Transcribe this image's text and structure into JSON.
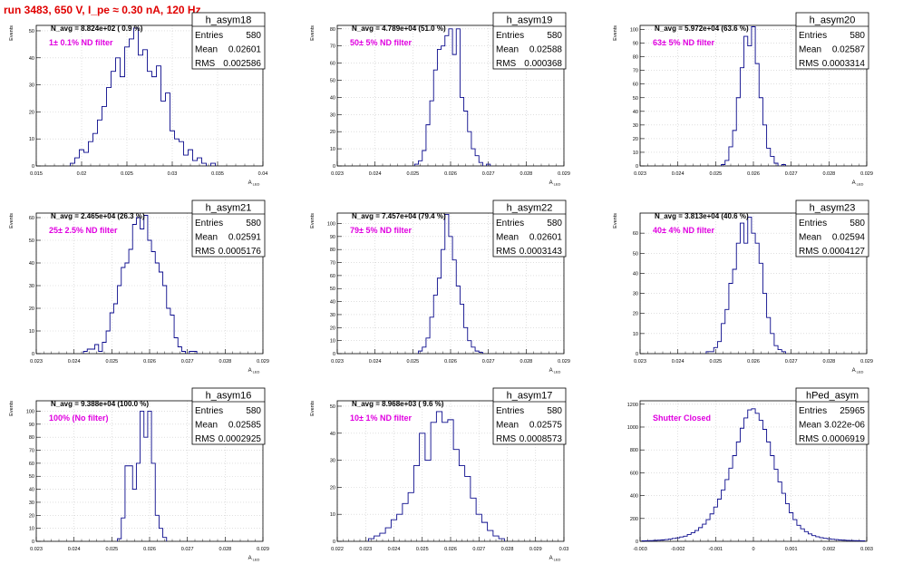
{
  "run_title": "run 3483,   650 V, I_pe ≈ 0.30 nA, 120 Hz",
  "colors": {
    "title": "#e00000",
    "line": "#0a0a8c",
    "filter_label": "#e000e0",
    "grid": "#cccccc"
  },
  "chart_data": [
    {
      "type": "bar",
      "name": "h_asym18",
      "title": "N_avg = 8.824e+02 ( 0.9 %)",
      "label": "1± 0.1% ND filter",
      "ylabel": "Events",
      "xlabel": "A_LED",
      "xlim": [
        0.015,
        0.04
      ],
      "ylim": [
        0,
        52
      ],
      "xticks": [
        0.015,
        0.02,
        0.025,
        0.03,
        0.035,
        0.04
      ],
      "xtick_labels": [
        "0.015",
        "0.02",
        "0.025",
        "0.03",
        "0.035",
        "0.04"
      ],
      "yticks": [
        0,
        10,
        20,
        30,
        40,
        50
      ],
      "stats": {
        "Entries": "580",
        "Mean": "0.02601",
        "RMS": "0.002586"
      },
      "bin_width": 0.0005,
      "values": [
        [
          0.019,
          1
        ],
        [
          0.0195,
          3
        ],
        [
          0.02,
          6
        ],
        [
          0.0205,
          5
        ],
        [
          0.021,
          9
        ],
        [
          0.0215,
          12
        ],
        [
          0.022,
          17
        ],
        [
          0.0225,
          22
        ],
        [
          0.023,
          29
        ],
        [
          0.0235,
          35
        ],
        [
          0.024,
          40
        ],
        [
          0.0245,
          33
        ],
        [
          0.025,
          44
        ],
        [
          0.0255,
          47
        ],
        [
          0.026,
          51
        ],
        [
          0.0265,
          41
        ],
        [
          0.027,
          43
        ],
        [
          0.0275,
          35
        ],
        [
          0.028,
          33
        ],
        [
          0.0285,
          37
        ],
        [
          0.029,
          24
        ],
        [
          0.0295,
          27
        ],
        [
          0.03,
          13
        ],
        [
          0.0305,
          10
        ],
        [
          0.031,
          9
        ],
        [
          0.0315,
          4
        ],
        [
          0.032,
          6
        ],
        [
          0.0325,
          2
        ],
        [
          0.033,
          3
        ],
        [
          0.0335,
          1
        ],
        [
          0.0345,
          1
        ]
      ]
    },
    {
      "type": "bar",
      "name": "h_asym19",
      "title": "N_avg = 4.789e+04 (51.0 %)",
      "label": "50± 5% ND filter",
      "ylabel": "Events",
      "xlabel": "A_LED",
      "xlim": [
        0.023,
        0.029
      ],
      "ylim": [
        0,
        82
      ],
      "xticks": [
        0.023,
        0.024,
        0.025,
        0.026,
        0.027,
        0.028,
        0.029
      ],
      "xtick_labels": [
        "0.023",
        "0.024",
        "0.025",
        "0.026",
        "0.027",
        "0.028",
        "0.029"
      ],
      "yticks": [
        0,
        10,
        20,
        30,
        40,
        50,
        60,
        70,
        80
      ],
      "stats": {
        "Entries": "580",
        "Mean": "0.02588",
        "RMS": "0.000368"
      },
      "bin_width": 0.0001,
      "values": [
        [
          0.0251,
          1
        ],
        [
          0.0252,
          3
        ],
        [
          0.0253,
          9
        ],
        [
          0.0254,
          24
        ],
        [
          0.0255,
          38
        ],
        [
          0.0256,
          56
        ],
        [
          0.0257,
          68
        ],
        [
          0.0258,
          70
        ],
        [
          0.0259,
          76
        ],
        [
          0.026,
          80
        ],
        [
          0.0261,
          65
        ],
        [
          0.0262,
          80
        ],
        [
          0.0263,
          40
        ],
        [
          0.0264,
          32
        ],
        [
          0.0265,
          20
        ],
        [
          0.0266,
          10
        ],
        [
          0.0267,
          6
        ],
        [
          0.0268,
          2
        ],
        [
          0.027,
          1
        ]
      ]
    },
    {
      "type": "bar",
      "name": "h_asym20",
      "title": "N_avg = 5.972e+04 (63.6 %)",
      "label": "63± 5% ND filter",
      "ylabel": "Events",
      "xlabel": "A_LED",
      "xlim": [
        0.023,
        0.029
      ],
      "ylim": [
        0,
        103
      ],
      "xticks": [
        0.023,
        0.024,
        0.025,
        0.026,
        0.027,
        0.028,
        0.029
      ],
      "xtick_labels": [
        "0.023",
        "0.024",
        "0.025",
        "0.026",
        "0.027",
        "0.028",
        "0.029"
      ],
      "yticks": [
        0,
        10,
        20,
        30,
        40,
        50,
        60,
        70,
        80,
        90,
        100
      ],
      "stats": {
        "Entries": "580",
        "Mean": "0.02587",
        "RMS": "0.0003314"
      },
      "bin_width": 0.0001,
      "values": [
        [
          0.0252,
          1
        ],
        [
          0.0253,
          4
        ],
        [
          0.0254,
          14
        ],
        [
          0.0255,
          26
        ],
        [
          0.0256,
          50
        ],
        [
          0.0257,
          72
        ],
        [
          0.0258,
          95
        ],
        [
          0.0259,
          88
        ],
        [
          0.026,
          102
        ],
        [
          0.0261,
          75
        ],
        [
          0.0262,
          50
        ],
        [
          0.0263,
          30
        ],
        [
          0.0264,
          13
        ],
        [
          0.0265,
          7
        ],
        [
          0.0266,
          2
        ],
        [
          0.0268,
          1
        ]
      ]
    },
    {
      "type": "bar",
      "name": "h_asym21",
      "title": "N_avg = 2.465e+04 (26.3 %)",
      "label": "25± 2.5% ND filter",
      "ylabel": "Events",
      "xlabel": "A_LED",
      "xlim": [
        0.023,
        0.029
      ],
      "ylim": [
        0,
        62
      ],
      "xticks": [
        0.023,
        0.024,
        0.025,
        0.026,
        0.027,
        0.028,
        0.029
      ],
      "xtick_labels": [
        "0.023",
        "0.024",
        "0.025",
        "0.026",
        "0.027",
        "0.028",
        "0.029"
      ],
      "yticks": [
        0,
        10,
        20,
        30,
        40,
        50,
        60
      ],
      "stats": {
        "Entries": "580",
        "Mean": "0.02591",
        "RMS": "0.0005176"
      },
      "bin_width": 0.0001,
      "values": [
        [
          0.0243,
          1
        ],
        [
          0.0244,
          2
        ],
        [
          0.0245,
          2
        ],
        [
          0.0246,
          4
        ],
        [
          0.0247,
          1
        ],
        [
          0.0248,
          5
        ],
        [
          0.0249,
          10
        ],
        [
          0.025,
          18
        ],
        [
          0.0251,
          22
        ],
        [
          0.0252,
          30
        ],
        [
          0.0253,
          38
        ],
        [
          0.0254,
          40
        ],
        [
          0.0255,
          46
        ],
        [
          0.0256,
          57
        ],
        [
          0.0257,
          60
        ],
        [
          0.0258,
          55
        ],
        [
          0.0259,
          61
        ],
        [
          0.026,
          50
        ],
        [
          0.0261,
          45
        ],
        [
          0.0262,
          40
        ],
        [
          0.0263,
          36
        ],
        [
          0.0264,
          30
        ],
        [
          0.0265,
          20
        ],
        [
          0.0266,
          17
        ],
        [
          0.0267,
          7
        ],
        [
          0.0268,
          3
        ],
        [
          0.0269,
          1
        ],
        [
          0.0271,
          1
        ],
        [
          0.0272,
          1
        ]
      ]
    },
    {
      "type": "bar",
      "name": "h_asym22",
      "title": "N_avg = 7.457e+04 (79.4 %)",
      "label": "79± 5% ND filter",
      "ylabel": "Events",
      "xlabel": "A_LED",
      "xlim": [
        0.023,
        0.029
      ],
      "ylim": [
        0,
        108
      ],
      "xticks": [
        0.023,
        0.024,
        0.025,
        0.026,
        0.027,
        0.028,
        0.029
      ],
      "xtick_labels": [
        "0.023",
        "0.024",
        "0.025",
        "0.026",
        "0.027",
        "0.028",
        "0.029"
      ],
      "yticks": [
        0,
        10,
        20,
        30,
        40,
        50,
        60,
        70,
        80,
        90,
        100
      ],
      "stats": {
        "Entries": "580",
        "Mean": "0.02601",
        "RMS": "0.0003143"
      },
      "bin_width": 0.0001,
      "values": [
        [
          0.0252,
          2
        ],
        [
          0.0253,
          5
        ],
        [
          0.0254,
          12
        ],
        [
          0.0255,
          28
        ],
        [
          0.0256,
          45
        ],
        [
          0.0257,
          58
        ],
        [
          0.0258,
          80
        ],
        [
          0.0259,
          107
        ],
        [
          0.026,
          90
        ],
        [
          0.0261,
          72
        ],
        [
          0.0262,
          52
        ],
        [
          0.0263,
          38
        ],
        [
          0.0264,
          20
        ],
        [
          0.0265,
          10
        ],
        [
          0.0266,
          5
        ],
        [
          0.0267,
          2
        ],
        [
          0.0268,
          1
        ]
      ]
    },
    {
      "type": "bar",
      "name": "h_asym23",
      "title": "N_avg = 3.813e+04 (40.6 %)",
      "label": "40± 4% ND filter",
      "ylabel": "Events",
      "xlabel": "A_LED",
      "xlim": [
        0.023,
        0.029
      ],
      "ylim": [
        0,
        70
      ],
      "xticks": [
        0.023,
        0.024,
        0.025,
        0.026,
        0.027,
        0.028,
        0.029
      ],
      "xtick_labels": [
        "0.023",
        "0.024",
        "0.025",
        "0.026",
        "0.027",
        "0.028",
        "0.029"
      ],
      "yticks": [
        0,
        10,
        20,
        30,
        40,
        50,
        60
      ],
      "stats": {
        "Entries": "580",
        "Mean": "0.02594",
        "RMS": "0.0004127"
      },
      "bin_width": 0.0001,
      "values": [
        [
          0.0248,
          1
        ],
        [
          0.0249,
          1
        ],
        [
          0.025,
          3
        ],
        [
          0.0251,
          6
        ],
        [
          0.0252,
          15
        ],
        [
          0.0253,
          22
        ],
        [
          0.0254,
          35
        ],
        [
          0.0255,
          42
        ],
        [
          0.0256,
          55
        ],
        [
          0.0257,
          65
        ],
        [
          0.0258,
          55
        ],
        [
          0.0259,
          68
        ],
        [
          0.026,
          60
        ],
        [
          0.0261,
          55
        ],
        [
          0.0262,
          45
        ],
        [
          0.0263,
          30
        ],
        [
          0.0264,
          18
        ],
        [
          0.0265,
          10
        ],
        [
          0.0266,
          4
        ],
        [
          0.0267,
          2
        ],
        [
          0.0268,
          1
        ]
      ]
    },
    {
      "type": "bar",
      "name": "h_asym16",
      "title": "N_avg = 9.388e+04 (100.0 %)",
      "label": "100% (No filter)",
      "ylabel": "Events",
      "xlabel": "A_LED",
      "xlim": [
        0.023,
        0.029
      ],
      "ylim": [
        0,
        108
      ],
      "xticks": [
        0.023,
        0.024,
        0.025,
        0.026,
        0.027,
        0.028,
        0.029
      ],
      "xtick_labels": [
        "0.023",
        "0.024",
        "0.025",
        "0.026",
        "0.027",
        "0.028",
        "0.029"
      ],
      "yticks": [
        0,
        10,
        20,
        30,
        40,
        50,
        60,
        70,
        80,
        90,
        100
      ],
      "stats": {
        "Entries": "580",
        "Mean": "0.02585",
        "RMS": "0.0002925"
      },
      "bin_width": 0.0001,
      "values": [
        [
          0.0252,
          2
        ],
        [
          0.0253,
          18
        ],
        [
          0.0254,
          58
        ],
        [
          0.0255,
          58
        ],
        [
          0.0256,
          40
        ],
        [
          0.0257,
          60
        ],
        [
          0.0258,
          100
        ],
        [
          0.0259,
          80
        ],
        [
          0.026,
          100
        ],
        [
          0.0261,
          60
        ],
        [
          0.0262,
          20
        ],
        [
          0.0263,
          10
        ],
        [
          0.0264,
          3
        ]
      ]
    },
    {
      "type": "bar",
      "name": "h_asym17",
      "title": "N_avg = 8.968e+03 ( 9.6 %)",
      "label": "10± 1% ND filter",
      "ylabel": "Events",
      "xlabel": "A_LED",
      "xlim": [
        0.022,
        0.03
      ],
      "ylim": [
        0,
        52
      ],
      "xticks": [
        0.022,
        0.023,
        0.024,
        0.025,
        0.026,
        0.027,
        0.028,
        0.029,
        0.03
      ],
      "xtick_labels": [
        "0.022",
        "0.023",
        "0.024",
        "0.025",
        "0.026",
        "0.027",
        "0.028",
        "0.029",
        "0.03"
      ],
      "yticks": [
        0,
        10,
        20,
        30,
        40,
        50
      ],
      "stats": {
        "Entries": "580",
        "Mean": "0.02575",
        "RMS": "0.0008573"
      },
      "bin_width": 0.0002,
      "values": [
        [
          0.0232,
          1
        ],
        [
          0.0234,
          2
        ],
        [
          0.0236,
          3
        ],
        [
          0.0238,
          5
        ],
        [
          0.024,
          8
        ],
        [
          0.0242,
          10
        ],
        [
          0.0244,
          14
        ],
        [
          0.0246,
          18
        ],
        [
          0.0248,
          28
        ],
        [
          0.025,
          40
        ],
        [
          0.0252,
          30
        ],
        [
          0.0254,
          44
        ],
        [
          0.0256,
          48
        ],
        [
          0.0258,
          44
        ],
        [
          0.026,
          45
        ],
        [
          0.0262,
          34
        ],
        [
          0.0264,
          28
        ],
        [
          0.0266,
          24
        ],
        [
          0.0268,
          16
        ],
        [
          0.027,
          10
        ],
        [
          0.0272,
          7
        ],
        [
          0.0274,
          4
        ],
        [
          0.0276,
          2
        ],
        [
          0.0278,
          1
        ]
      ]
    },
    {
      "type": "bar",
      "name": "hPed_asym",
      "title": "",
      "label": "Shutter Closed",
      "ylabel": "",
      "xlabel": "",
      "xlim": [
        -0.003,
        0.003
      ],
      "ylim": [
        0,
        1230
      ],
      "xticks": [
        -0.003,
        -0.002,
        -0.001,
        0,
        0.001,
        0.002,
        0.003
      ],
      "xtick_labels": [
        "-0.003",
        "-0.002",
        "-0.001",
        "0",
        "0.001",
        "0.002",
        "0.003"
      ],
      "yticks": [
        0,
        200,
        400,
        600,
        800,
        1000,
        1200
      ],
      "stats": {
        "Entries": "25965",
        "Mean": "3.022e-06",
        "RMS": "0.0006919"
      },
      "bin_width": 0.0001,
      "values": [
        [
          -0.0029,
          4
        ],
        [
          -0.0028,
          5
        ],
        [
          -0.0027,
          6
        ],
        [
          -0.0026,
          8
        ],
        [
          -0.0025,
          10
        ],
        [
          -0.0024,
          12
        ],
        [
          -0.0023,
          15
        ],
        [
          -0.0022,
          20
        ],
        [
          -0.0021,
          25
        ],
        [
          -0.002,
          30
        ],
        [
          -0.0019,
          38
        ],
        [
          -0.0018,
          45
        ],
        [
          -0.0017,
          60
        ],
        [
          -0.0016,
          75
        ],
        [
          -0.0015,
          95
        ],
        [
          -0.0014,
          120
        ],
        [
          -0.0013,
          150
        ],
        [
          -0.0012,
          190
        ],
        [
          -0.0011,
          240
        ],
        [
          -0.001,
          300
        ],
        [
          -0.0009,
          370
        ],
        [
          -0.0008,
          450
        ],
        [
          -0.0007,
          540
        ],
        [
          -0.0006,
          640
        ],
        [
          -0.0005,
          750
        ],
        [
          -0.0004,
          870
        ],
        [
          -0.0003,
          990
        ],
        [
          -0.0002,
          1080
        ],
        [
          -0.0001,
          1150
        ],
        [
          0,
          1160
        ],
        [
          0.0001,
          1120
        ],
        [
          0.0002,
          1060
        ],
        [
          0.0003,
          980
        ],
        [
          0.0004,
          870
        ],
        [
          0.0005,
          750
        ],
        [
          0.0006,
          630
        ],
        [
          0.0007,
          520
        ],
        [
          0.0008,
          420
        ],
        [
          0.0009,
          330
        ],
        [
          0.001,
          250
        ],
        [
          0.0011,
          190
        ],
        [
          0.0012,
          140
        ],
        [
          0.0013,
          110
        ],
        [
          0.0014,
          85
        ],
        [
          0.0015,
          65
        ],
        [
          0.0016,
          50
        ],
        [
          0.0017,
          40
        ],
        [
          0.0018,
          32
        ],
        [
          0.0019,
          26
        ],
        [
          0.002,
          22
        ],
        [
          0.0021,
          18
        ],
        [
          0.0022,
          15
        ],
        [
          0.0023,
          12
        ],
        [
          0.0024,
          10
        ],
        [
          0.0025,
          8
        ],
        [
          0.0026,
          7
        ],
        [
          0.0027,
          6
        ],
        [
          0.0028,
          5
        ],
        [
          0.0029,
          4
        ]
      ]
    }
  ]
}
